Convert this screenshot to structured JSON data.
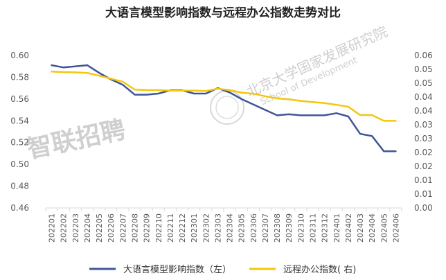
{
  "chart_data": {
    "type": "line",
    "title": "大语言模型影响指数与远程办公指数走势对比",
    "categories": [
      "202201",
      "202202",
      "202203",
      "202204",
      "202205",
      "202206",
      "202207",
      "202208",
      "202209",
      "202210",
      "202211",
      "202212",
      "202301",
      "202302",
      "202303",
      "202304",
      "202305",
      "202306",
      "202307",
      "202308",
      "202309",
      "202310",
      "202311",
      "202312",
      "202401",
      "202402",
      "202403",
      "202404",
      "202405",
      "202406"
    ],
    "y_left": {
      "min": 0.46,
      "max": 0.6,
      "ticks": [
        "0.46",
        "0.48",
        "0.50",
        "0.52",
        "0.54",
        "0.56",
        "0.58",
        "0.60"
      ]
    },
    "y_right": {
      "min": 0.0,
      "max": 0.055,
      "ticks": [
        "0.00",
        "0.01",
        "0.01",
        "0.02",
        "0.02",
        "0.03",
        "0.03",
        "0.04",
        "0.04",
        "0.05",
        "0.05",
        "0.06"
      ]
    },
    "series": [
      {
        "name": "大语言模型影响指数（左）",
        "axis": "left",
        "color": "#3f5597",
        "values": [
          0.591,
          0.589,
          0.59,
          0.591,
          0.584,
          0.578,
          0.573,
          0.564,
          0.564,
          0.565,
          0.568,
          0.568,
          0.565,
          0.565,
          0.57,
          0.566,
          0.56,
          0.555,
          0.55,
          0.545,
          0.546,
          0.545,
          0.545,
          0.545,
          0.547,
          0.544,
          0.528,
          0.526,
          0.512,
          0.512
        ]
      },
      {
        "name": "远程办公指数( 右)",
        "axis": "right",
        "color": "#f4c60e",
        "values": [
          0.0492,
          0.049,
          0.0489,
          0.0487,
          0.0477,
          0.0466,
          0.0455,
          0.0427,
          0.0425,
          0.0425,
          0.0423,
          0.0423,
          0.0423,
          0.0422,
          0.043,
          0.0425,
          0.0416,
          0.0412,
          0.0403,
          0.0395,
          0.0392,
          0.0386,
          0.0382,
          0.0378,
          0.0372,
          0.0365,
          0.0335,
          0.0335,
          0.0314,
          0.0314
        ]
      }
    ],
    "grid": false,
    "legend": "bottom"
  },
  "watermarks": {
    "zhilian": "智联招聘",
    "pku_cn": "北京大学国家发展研究院",
    "pku_en": "School of Development"
  }
}
